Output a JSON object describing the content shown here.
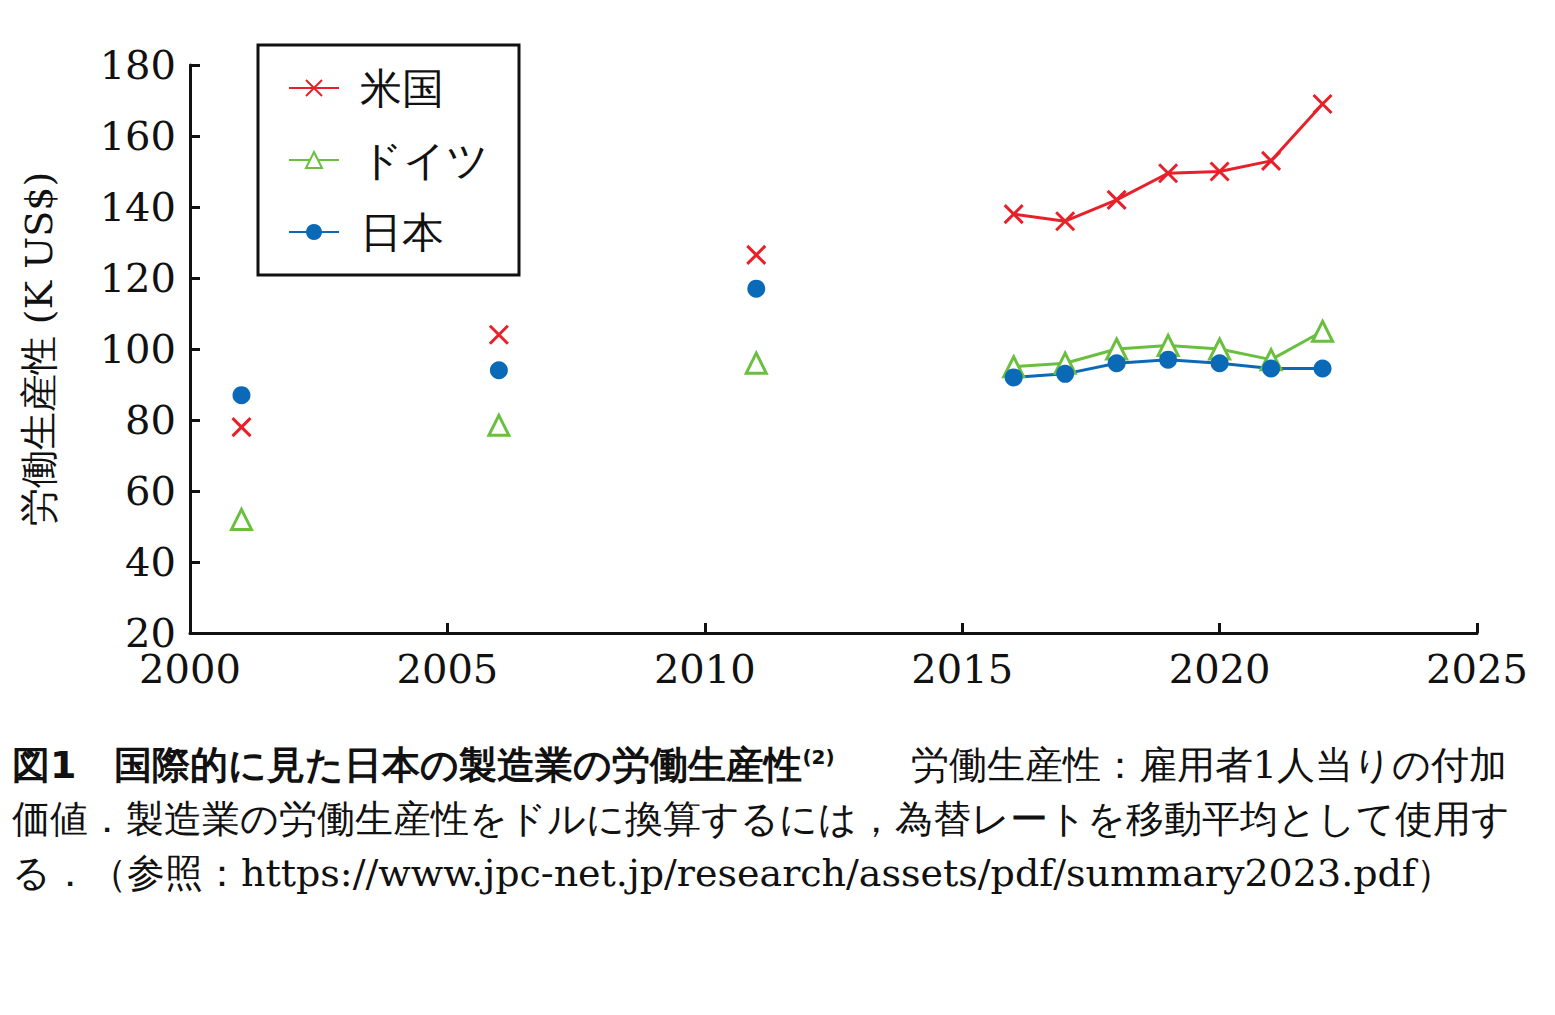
{
  "chart_data": {
    "type": "line",
    "figure_label": "図1",
    "title": "国際的に見た日本の製造業の労働生産性",
    "title_ref": "(2)",
    "caption": "労働生産性：雇用者1人当りの付加価値．製造業の労働生産性をドルに換算するには，為替レートを移動平均として使用する．（参照：https://www.jpc-net.jp/research/assets/pdf/summary2023.pdf）",
    "y_label": "労働生産性 (K US$)",
    "x": [
      2001,
      2006,
      2011,
      2016,
      2017,
      2018,
      2019,
      2020,
      2021,
      2022
    ],
    "series": [
      {
        "name": "米国",
        "color": "#e8202a",
        "marker": "x",
        "values": [
          78,
          104,
          126.5,
          138,
          136,
          142,
          149.5,
          150,
          153,
          169
        ]
      },
      {
        "name": "ドイツ",
        "color": "#6abf3f",
        "marker": "triangle_open",
        "values": [
          52,
          78.5,
          96,
          95,
          96,
          100,
          101,
          100,
          97,
          105
        ]
      },
      {
        "name": "日本",
        "color": "#0a6ab8",
        "marker": "circle",
        "values": [
          87,
          94,
          117,
          92,
          93,
          96,
          97,
          96,
          94.5,
          94.5
        ]
      }
    ],
    "xlim": [
      2000,
      2025
    ],
    "xticks": [
      2000,
      2005,
      2010,
      2015,
      2020,
      2025
    ],
    "ylim": [
      20,
      180
    ],
    "yticks": [
      20,
      40,
      60,
      80,
      100,
      120,
      140,
      160,
      180
    ],
    "grid": false,
    "legend": "upper left"
  }
}
